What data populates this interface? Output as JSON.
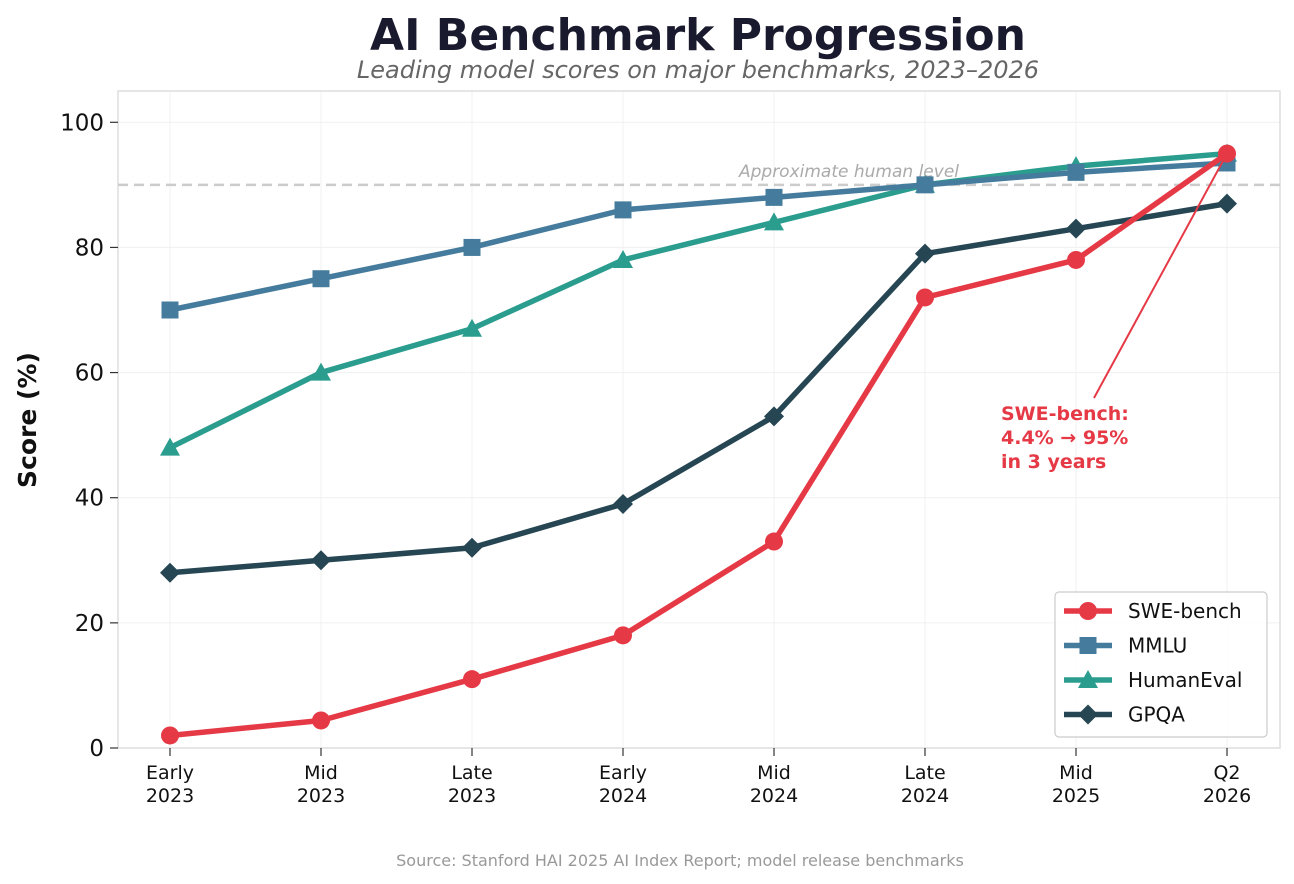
{
  "chart_data": {
    "type": "line",
    "title": "AI Benchmark Progression",
    "subtitle": "Leading model scores on major benchmarks, 2023–2026",
    "ylabel": "Score (%)",
    "xlabel": "",
    "categories": [
      [
        "Early",
        "2023"
      ],
      [
        "Mid",
        "2023"
      ],
      [
        "Late",
        "2023"
      ],
      [
        "Early",
        "2024"
      ],
      [
        "Mid",
        "2024"
      ],
      [
        "Late",
        "2024"
      ],
      [
        "Mid",
        "2025"
      ],
      [
        "Q2",
        "2026"
      ]
    ],
    "ylim": [
      0,
      105
    ],
    "yticks": [
      0,
      20,
      40,
      60,
      80,
      100
    ],
    "grid": true,
    "legend_position": "bottom-right",
    "reference_line": {
      "y": 90,
      "label": "Approximate human level",
      "color": "#cccccc"
    },
    "series": [
      {
        "name": "SWE-bench",
        "color": "#e63946",
        "marker": "circle",
        "values": [
          2,
          4.4,
          11,
          18,
          33,
          72,
          78,
          95
        ]
      },
      {
        "name": "MMLU",
        "color": "#457b9d",
        "marker": "square",
        "values": [
          70,
          75,
          80,
          86,
          88,
          90,
          92,
          93.5
        ]
      },
      {
        "name": "HumanEval",
        "color": "#2a9d8f",
        "marker": "triangle",
        "values": [
          48,
          60,
          67,
          78,
          84,
          90,
          93,
          95
        ]
      },
      {
        "name": "GPQA",
        "color": "#264653",
        "marker": "diamond",
        "values": [
          28,
          30,
          32,
          39,
          53,
          79,
          83,
          87
        ]
      }
    ],
    "annotation": {
      "lines": [
        "SWE-bench:",
        "4.4% → 95%",
        "in 3 years"
      ],
      "target_index": 7,
      "target_value": 95,
      "text_x": 5.5,
      "text_y": 53,
      "color": "#e63946"
    },
    "source": "Source: Stanford HAI 2025 AI Index Report; model release benchmarks"
  }
}
